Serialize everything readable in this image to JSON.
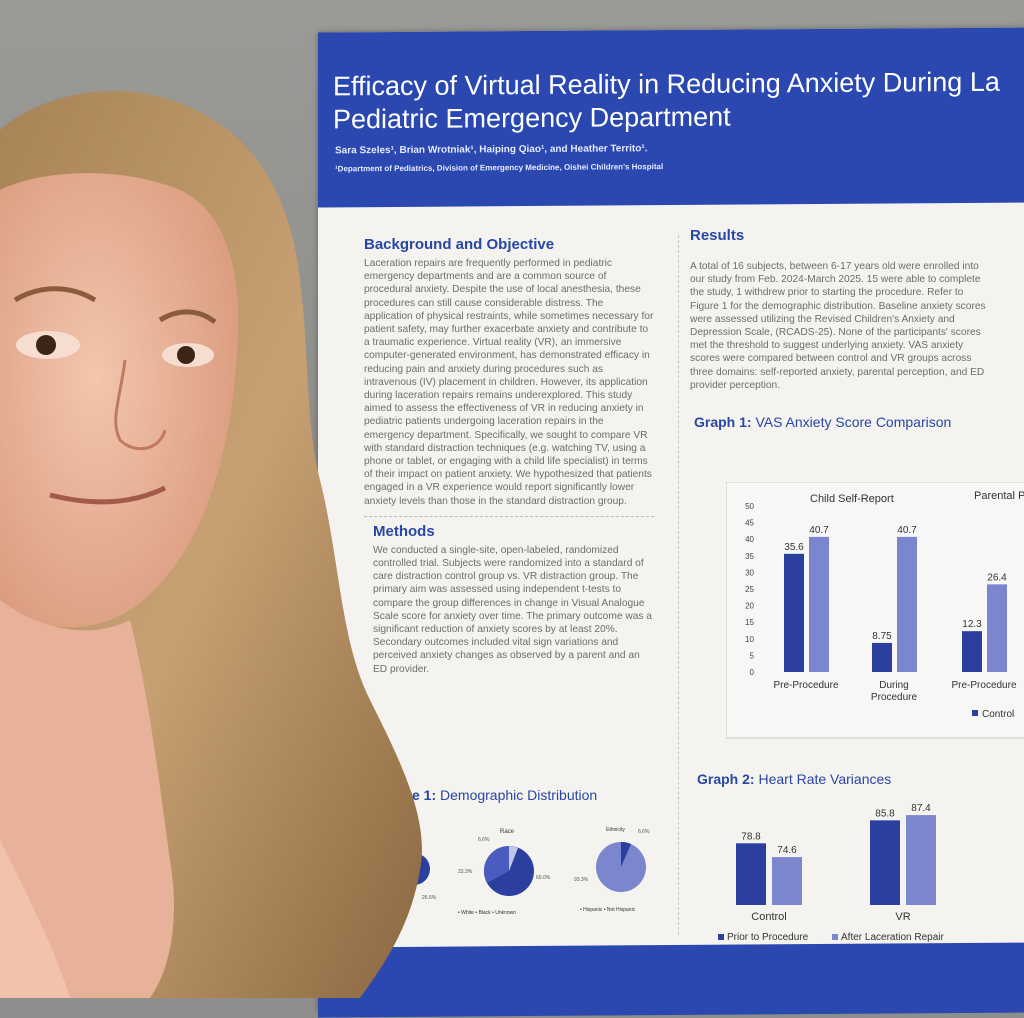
{
  "poster": {
    "title_line1": "Efficacy of Virtual Reality in Reducing Anxiety During La",
    "title_line2": "Pediatric Emergency Department",
    "authors": "Sara Szeles¹, Brian Wrotniak¹, Haiping Qiao¹, and Heather Territo¹.",
    "affiliation": "¹Department of Pediatrics, Division of Emergency Medicine, Oishei Children's Hospital",
    "background": {
      "title": "Background and Objective",
      "body": "Laceration repairs are frequently performed in pediatric emergency departments and are a common source of procedural anxiety. Despite the use of local anesthesia, these procedures can still cause considerable distress. The application of physical restraints, while sometimes necessary for patient safety, may further exacerbate anxiety and contribute to a traumatic experience. Virtual reality (VR), an immersive computer-generated environment, has demonstrated efficacy in reducing pain and anxiety during procedures such as intravenous (IV) placement in children. However, its application during laceration repairs remains underexplored. This study aimed to assess the effectiveness of VR in reducing anxiety in pediatric patients undergoing laceration repairs in the emergency department. Specifically, we sought to compare VR with standard distraction techniques (e.g. watching TV, using a phone or tablet, or engaging with a child life specialist) in terms of their impact on patient anxiety. We hypothesized that patients engaged in a VR experience would report significantly lower anxiety levels than those in the standard distraction group."
    },
    "methods": {
      "title": "Methods",
      "body": "We conducted a single-site, open-labeled, randomized controlled trial. Subjects were randomized into a standard of care distraction control group vs. VR distraction group. The primary aim was assessed using independent t-tests to compare the group differences in change in Visual Analogue Scale score for anxiety over time. The primary outcome was a significant reduction of anxiety scores by at least 20%. Secondary outcomes included vital sign variations and perceived anxiety changes as observed by a parent and an ED provider."
    },
    "results": {
      "title": "Results",
      "body": "A total of 16 subjects, between 6-17 years old were enrolled into our study from Feb. 2024-March 2025. 15 were able to complete the study, 1 withdrew prior to starting the procedure. Refer to Figure 1 for the demographic distribution. Baseline anxiety scores were assessed utilizing the Revised Children's Anxiety and Depression Scale, (RCADS-25). None of the participants' scores met the threshold to suggest underlying anxiety. VAS anxiety scores were compared between control and VR groups across three domains: self-reported anxiety, parental perception, and ED provider perception."
    },
    "graph1": {
      "label": "Graph 1:",
      "title": "VAS Anxiety Score Comparison",
      "panel1_title": "Child Self-Report",
      "panel2_title": "Parental P",
      "legend_control": "Control"
    },
    "graph2": {
      "label": "Graph 2:",
      "title": "Heart Rate Variances",
      "legend_prior": "Prior to Procedure",
      "legend_after": "After Laceration Repair"
    },
    "figure1": {
      "label": "ure 1:",
      "title": "Demographic Distribution",
      "race_title": "Race",
      "ethnicity_title": "Ethnicity",
      "race_legend": "• White  • Black  • Unknown",
      "eth_legend": "• Hispanic  • Not Hispanic",
      "race_pct_a": "6.6%",
      "race_pct_b": "33.3%",
      "race_pct_c": "60.0%",
      "eth_pct_a": "6.6%",
      "eth_pct_b": "93.3%",
      "left_pct": "26.6%"
    }
  },
  "chart_data": [
    {
      "type": "bar",
      "title": "VAS Anxiety Score Comparison",
      "subtitle": "Child Self-Report",
      "categories": [
        "Pre-Procedure",
        "During Procedure",
        "Pre-Procedure"
      ],
      "series": [
        {
          "name": "Control",
          "values": [
            35.6,
            8.75,
            12.3
          ]
        },
        {
          "name": "",
          "values": [
            40.7,
            40.7,
            26.4
          ]
        }
      ],
      "yticks": [
        0,
        5,
        10,
        15,
        20,
        25,
        30,
        35,
        40,
        45,
        50
      ],
      "ylim": [
        0,
        50
      ],
      "colors": [
        "#2b3f9e",
        "#7c86cf"
      ]
    },
    {
      "type": "bar",
      "title": "Heart Rate Variances",
      "categories": [
        "Control",
        "VR"
      ],
      "series": [
        {
          "name": "Prior to Procedure",
          "values": [
            78.8,
            85.8
          ]
        },
        {
          "name": "After Laceration Repair",
          "values": [
            74.6,
            87.4
          ]
        }
      ],
      "ylim": [
        60,
        92
      ],
      "colors": [
        "#2b3f9e",
        "#7c86cf"
      ]
    }
  ]
}
